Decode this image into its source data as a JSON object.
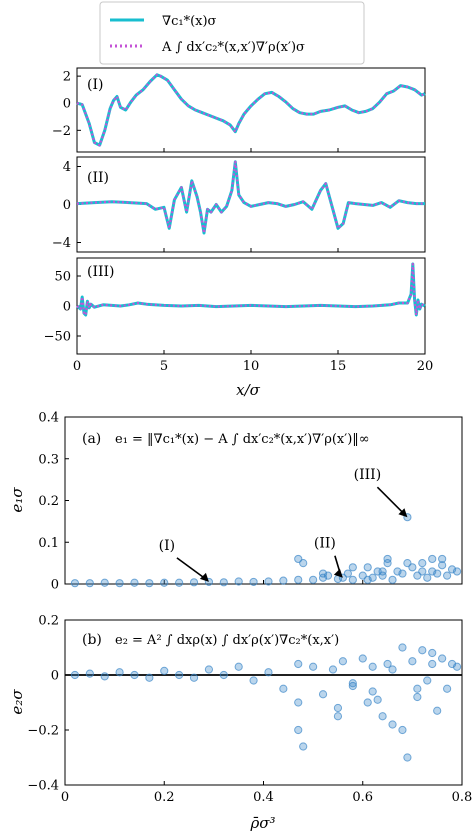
{
  "legend": {
    "entries": [
      {
        "label": "∇c₁*(x)σ",
        "color": "#17becf",
        "style": "solid"
      },
      {
        "label": "A ∫ dx′c₂*(x,x′)∇′ρ(x′)σ",
        "color": "#c453d6",
        "style": "dotted"
      }
    ]
  },
  "colors": {
    "cyan": "#17becf",
    "magenta": "#c453d6",
    "points": "#3a86c8"
  },
  "chart_data": [
    {
      "type": "line",
      "panel_label": "(I)",
      "xlim": [
        0,
        20
      ],
      "ylim": [
        -3.6,
        2.6
      ],
      "yticks": [
        -2,
        0,
        2
      ],
      "xlabel": "",
      "x": [
        0,
        0.3,
        0.7,
        1,
        1.3,
        1.6,
        1.9,
        2.1,
        2.3,
        2.5,
        2.8,
        3.1,
        3.4,
        3.8,
        4.2,
        4.6,
        4.8,
        5.2,
        5.6,
        6,
        6.4,
        6.8,
        7.2,
        7.6,
        8,
        8.4,
        8.8,
        9.1,
        9.3,
        9.6,
        10,
        10.4,
        10.8,
        11.2,
        11.6,
        12,
        12.4,
        12.8,
        13.2,
        13.6,
        14,
        14.5,
        15,
        15.4,
        15.8,
        16.2,
        16.6,
        17,
        17.4,
        17.8,
        18.2,
        18.6,
        19,
        19.4,
        19.8,
        20
      ],
      "series": [
        {
          "name": "",
          "values": [
            0,
            -0.1,
            -1.5,
            -2.9,
            -3.1,
            -2,
            -0.4,
            0.2,
            0.5,
            -0.3,
            -0.5,
            0.1,
            0.6,
            1,
            1.6,
            2.1,
            2,
            1.7,
            1,
            0.3,
            -0.2,
            -0.5,
            -0.7,
            -0.9,
            -1.1,
            -1.3,
            -1.6,
            -2.1,
            -1.5,
            -0.8,
            -0.2,
            0.3,
            0.7,
            0.8,
            0.5,
            0.1,
            -0.4,
            -0.7,
            -0.8,
            -0.8,
            -0.6,
            -0.5,
            -0.3,
            -0.2,
            -0.5,
            -0.7,
            -0.6,
            -0.4,
            0.1,
            0.7,
            0.9,
            1.3,
            1.2,
            1,
            0.6,
            0.7
          ]
        }
      ]
    },
    {
      "type": "line",
      "panel_label": "(II)",
      "xlim": [
        0,
        20
      ],
      "ylim": [
        -5,
        5
      ],
      "yticks": [
        -4,
        0,
        4
      ],
      "xlabel": "",
      "x": [
        0,
        1,
        2,
        3,
        4,
        4.5,
        5,
        5.3,
        5.6,
        6,
        6.3,
        6.6,
        6.9,
        7.1,
        7.3,
        7.5,
        7.7,
        8,
        8.3,
        8.6,
        8.9,
        9.1,
        9.3,
        9.6,
        10,
        10.5,
        11,
        11.5,
        12,
        12.5,
        13,
        13.5,
        14,
        14.3,
        14.6,
        15,
        15.3,
        15.6,
        16,
        16.5,
        17,
        17.5,
        18,
        18.5,
        19,
        19.5,
        20
      ],
      "series": [
        {
          "name": "",
          "values": [
            0.1,
            0.2,
            0.3,
            0.2,
            0.1,
            -0.5,
            -0.3,
            -2.5,
            0.5,
            1.8,
            -0.8,
            2.5,
            0.8,
            -0.8,
            -3,
            -0.5,
            -0.8,
            0,
            -0.8,
            -0.2,
            1.5,
            4.5,
            1,
            0.2,
            -0.2,
            0,
            0.2,
            0.1,
            -0.2,
            0,
            0.3,
            -0.5,
            1.5,
            2.2,
            0.2,
            -2.5,
            -2,
            0.2,
            0.1,
            0,
            -0.1,
            0.2,
            -0.3,
            0.4,
            0.2,
            0.1,
            0.1
          ]
        }
      ]
    },
    {
      "type": "line",
      "panel_label": "(III)",
      "xlim": [
        0,
        20
      ],
      "ylim": [
        -80,
        80
      ],
      "yticks": [
        -50,
        0,
        50
      ],
      "xlabel": "x/σ",
      "xticks": [
        0,
        5,
        10,
        15,
        20
      ],
      "x": [
        0,
        0.2,
        0.3,
        0.4,
        0.5,
        0.6,
        0.7,
        0.8,
        1,
        1.5,
        2,
        2.5,
        3,
        3.5,
        4,
        5,
        6,
        7,
        8,
        9,
        10,
        11,
        12,
        13,
        14,
        15,
        16,
        17,
        18,
        18.5,
        19,
        19.2,
        19.3,
        19.4,
        19.5,
        19.6,
        19.7,
        19.8,
        20
      ],
      "series": [
        {
          "name": "",
          "values": [
            0,
            -5,
            15,
            -12,
            -15,
            8,
            -3,
            3,
            -2,
            2,
            1,
            0,
            2,
            5,
            3,
            1,
            0,
            1,
            -1,
            0,
            1,
            0,
            -1,
            0,
            1,
            0,
            -1,
            0,
            2,
            5,
            5,
            20,
            70,
            10,
            -15,
            10,
            -5,
            3,
            0
          ]
        }
      ]
    },
    {
      "type": "scatter",
      "panel_label": "(a)",
      "equation": "e₁ = ‖∇c₁*(x) − A ∫ dx′c₂*(x,x′)∇′ρ(x′)‖∞",
      "xlim": [
        0,
        0.8
      ],
      "ylim": [
        0,
        0.4
      ],
      "yticks": [
        0.0,
        0.1,
        0.2,
        0.3,
        0.4
      ],
      "ylabel": "e₁σ",
      "annotations": [
        {
          "text": "(I)",
          "x": 0.29,
          "y": 0.005
        },
        {
          "text": "(II)",
          "x": 0.56,
          "y": 0.015
        },
        {
          "text": "(III)",
          "x": 0.69,
          "y": 0.16
        }
      ],
      "x": [
        0.02,
        0.05,
        0.08,
        0.11,
        0.14,
        0.17,
        0.2,
        0.23,
        0.26,
        0.29,
        0.32,
        0.35,
        0.38,
        0.41,
        0.44,
        0.47,
        0.48,
        0.5,
        0.52,
        0.53,
        0.55,
        0.56,
        0.57,
        0.58,
        0.6,
        0.61,
        0.62,
        0.63,
        0.64,
        0.65,
        0.66,
        0.67,
        0.68,
        0.69,
        0.7,
        0.71,
        0.72,
        0.73,
        0.74,
        0.75,
        0.76,
        0.77,
        0.78,
        0.79,
        0.47,
        0.52,
        0.58,
        0.61,
        0.65,
        0.69,
        0.72,
        0.76,
        0.74,
        0.64
      ],
      "y": [
        0.002,
        0.002,
        0.003,
        0.002,
        0.003,
        0.002,
        0.003,
        0.003,
        0.004,
        0.005,
        0.004,
        0.006,
        0.005,
        0.006,
        0.008,
        0.01,
        0.05,
        0.01,
        0.015,
        0.02,
        0.012,
        0.015,
        0.025,
        0.01,
        0.02,
        0.04,
        0.015,
        0.03,
        0.02,
        0.05,
        0.01,
        0.03,
        0.025,
        0.16,
        0.04,
        0.02,
        0.05,
        0.015,
        0.03,
        0.025,
        0.06,
        0.02,
        0.035,
        0.03,
        0.06,
        0.025,
        0.04,
        0.01,
        0.06,
        0.05,
        0.03,
        0.045,
        0.06,
        0.03
      ]
    },
    {
      "type": "scatter",
      "panel_label": "(b)",
      "equation": "e₂ = A² ∫ dxρ(x) ∫ dx′ρ(x′)∇c₂*(x,x′)",
      "xlim": [
        0,
        0.8
      ],
      "ylim": [
        -0.4,
        0.2
      ],
      "yticks": [
        -0.4,
        -0.2,
        0.0,
        0.2
      ],
      "xticks": [
        0.0,
        0.2,
        0.4,
        0.6,
        0.8
      ],
      "ylabel": "e₂σ",
      "xlabel": "ρ̄σ³",
      "x": [
        0.02,
        0.05,
        0.08,
        0.11,
        0.14,
        0.17,
        0.2,
        0.23,
        0.26,
        0.29,
        0.32,
        0.35,
        0.38,
        0.41,
        0.44,
        0.47,
        0.47,
        0.48,
        0.5,
        0.52,
        0.54,
        0.55,
        0.56,
        0.58,
        0.6,
        0.61,
        0.62,
        0.63,
        0.64,
        0.65,
        0.66,
        0.68,
        0.69,
        0.7,
        0.71,
        0.72,
        0.73,
        0.74,
        0.75,
        0.76,
        0.77,
        0.78,
        0.79,
        0.47,
        0.55,
        0.66,
        0.71,
        0.74,
        0.62,
        0.58,
        0.68
      ],
      "y": [
        0.0,
        0.005,
        -0.005,
        0.01,
        0.0,
        -0.01,
        0.015,
        0.0,
        -0.01,
        0.02,
        0.0,
        0.03,
        -0.02,
        0.01,
        -0.05,
        0.04,
        -0.2,
        -0.26,
        0.03,
        -0.07,
        0.02,
        -0.12,
        0.05,
        -0.03,
        0.06,
        -0.1,
        0.03,
        -0.09,
        -0.15,
        0.04,
        -0.18,
        0.1,
        -0.3,
        0.05,
        -0.05,
        0.09,
        -0.02,
        0.08,
        -0.13,
        0.06,
        -0.05,
        0.04,
        0.03,
        -0.1,
        -0.15,
        0.02,
        -0.08,
        0.04,
        -0.06,
        -0.04,
        -0.2
      ]
    }
  ]
}
